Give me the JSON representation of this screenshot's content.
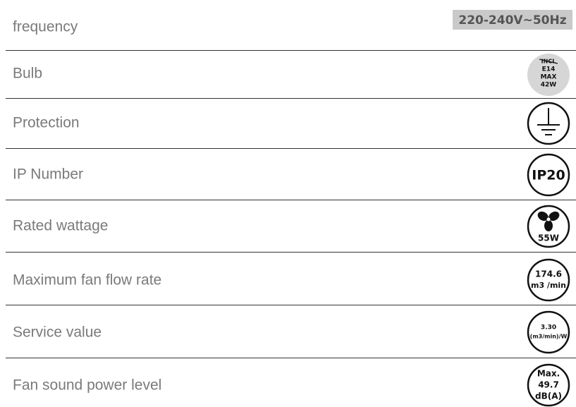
{
  "rows": [
    {
      "label": "frequency",
      "value": [
        "220-240V~50Hz"
      ]
    },
    {
      "label": "Bulb",
      "value": [
        "INCL",
        "E14",
        "MAX",
        "42W"
      ]
    },
    {
      "label": "Protection"
    },
    {
      "label": "IP Number",
      "value": [
        "IP20"
      ]
    },
    {
      "label": "Rated wattage",
      "value": [
        "55W"
      ]
    },
    {
      "label": "Maximum fan flow rate",
      "value": [
        "174.6",
        "m3 /min"
      ]
    },
    {
      "label": "Service value",
      "value": [
        "3.30",
        "(m3/min)/W"
      ]
    },
    {
      "label": "Fan sound power level",
      "value": [
        "Max.",
        "49.7",
        "dB(A)"
      ]
    }
  ]
}
